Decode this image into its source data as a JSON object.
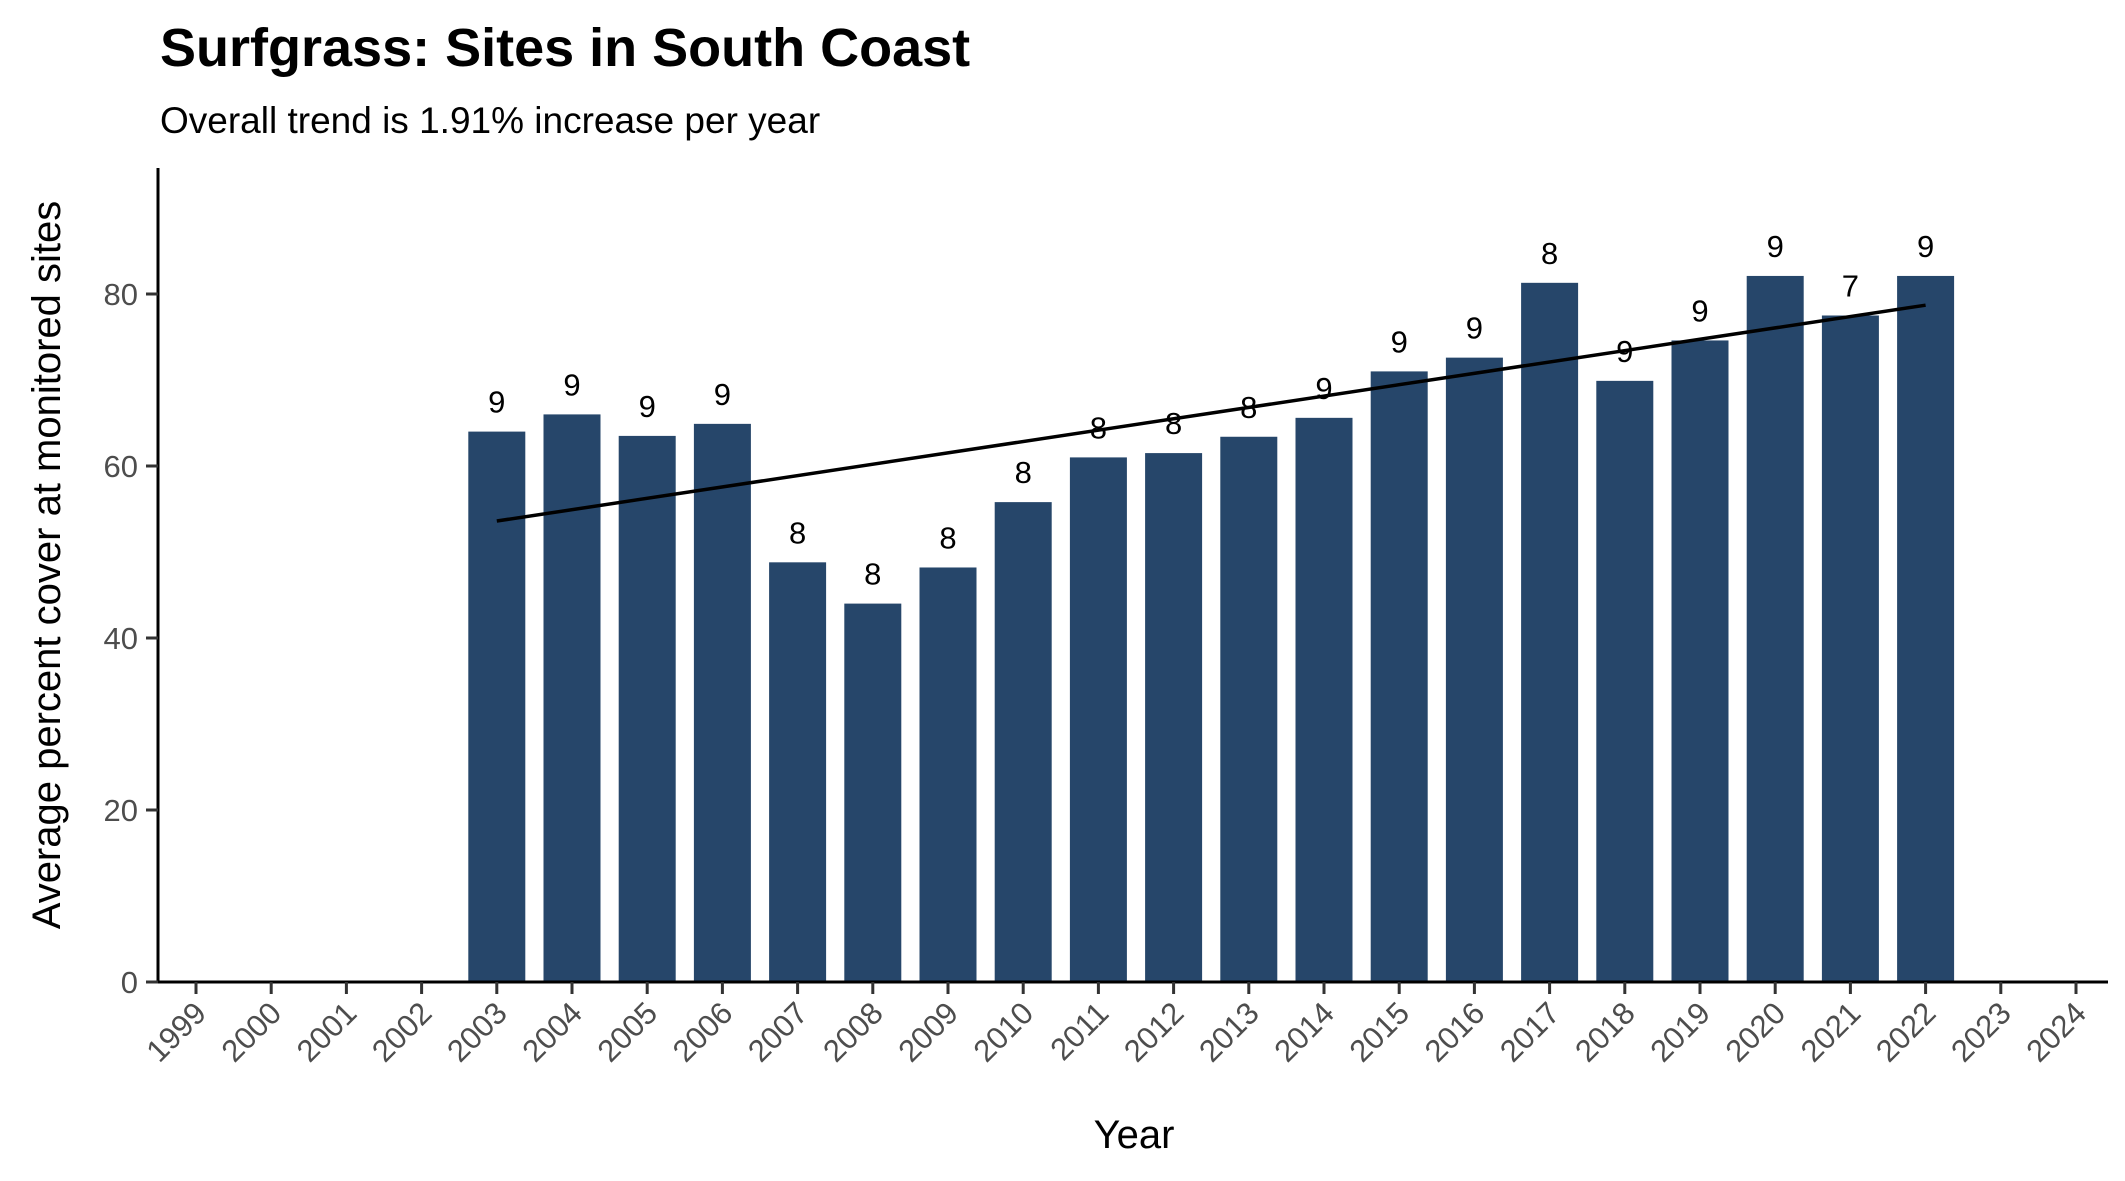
{
  "chart_data": {
    "type": "bar",
    "title": "Surfgrass: Sites in South Coast",
    "subtitle": "Overall trend is 1.91% increase per year",
    "xlabel": "Year",
    "ylabel": "Average percent cover at monitored sites",
    "categories": [
      "1999",
      "2000",
      "2001",
      "2002",
      "2003",
      "2004",
      "2005",
      "2006",
      "2007",
      "2008",
      "2009",
      "2010",
      "2011",
      "2012",
      "2013",
      "2014",
      "2015",
      "2016",
      "2017",
      "2018",
      "2019",
      "2020",
      "2021",
      "2022",
      "2023",
      "2024"
    ],
    "values": [
      null,
      null,
      null,
      null,
      64.0,
      66.0,
      63.5,
      64.9,
      48.8,
      44.0,
      48.2,
      55.8,
      61.0,
      61.5,
      63.4,
      65.6,
      71.0,
      72.6,
      81.3,
      69.9,
      74.6,
      82.1,
      77.5,
      82.1,
      null,
      null
    ],
    "bar_labels": [
      "",
      "",
      "",
      "",
      "9",
      "9",
      "9",
      "9",
      "8",
      "8",
      "8",
      "8",
      "8",
      "8",
      "8",
      "9",
      "9",
      "9",
      "8",
      "9",
      "9",
      "9",
      "7",
      "9",
      "",
      ""
    ],
    "yticks": [
      "0",
      "20",
      "40",
      "60",
      "80"
    ],
    "ylim": [
      0,
      95
    ],
    "trend_line": {
      "x": [
        "2003",
        "2022"
      ],
      "y": [
        53.6,
        78.7
      ]
    },
    "grid": false,
    "legend": "none",
    "bar_color": "#26466a",
    "trend_color": "#000000"
  }
}
